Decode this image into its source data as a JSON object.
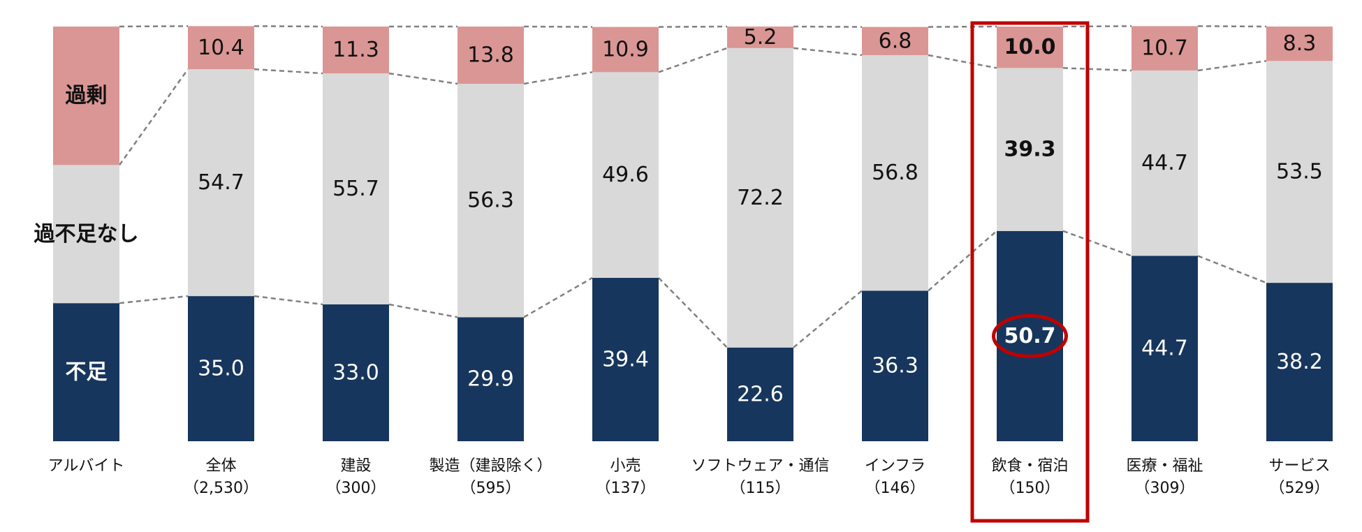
{
  "chart_data": {
    "type": "bar",
    "stacked": true,
    "orientation": "vertical",
    "normalized_percent": true,
    "categories": [
      {
        "name": "アルバイト",
        "n": ""
      },
      {
        "name": "全体",
        "n": "（2,530）"
      },
      {
        "name": "建設",
        "n": "（300）"
      },
      {
        "name": "製造（建設除く）",
        "n": "（595）"
      },
      {
        "name": "小売",
        "n": "（137）"
      },
      {
        "name": "ソフトウェア・通信",
        "n": "（115）"
      },
      {
        "name": "インフラ",
        "n": "（146）"
      },
      {
        "name": "飲食・宿泊",
        "n": "（150）"
      },
      {
        "name": "医療・福祉",
        "n": "（309）"
      },
      {
        "name": "サービス",
        "n": "（529）"
      }
    ],
    "series": [
      {
        "name": "不足",
        "color": "#17365d",
        "values": [
          null,
          35.0,
          33.0,
          29.9,
          39.4,
          22.6,
          36.3,
          50.7,
          44.7,
          38.2
        ],
        "labels": [
          "",
          "35.0",
          "33.0",
          "29.9",
          "39.4",
          "22.6",
          "36.3",
          "50.7",
          "44.7",
          "38.2"
        ]
      },
      {
        "name": "過不足なし",
        "color": "#d9d9d9",
        "values": [
          null,
          54.7,
          55.7,
          56.3,
          49.6,
          72.2,
          56.8,
          39.3,
          44.7,
          53.5
        ],
        "labels": [
          "",
          "54.7",
          "55.7",
          "56.3",
          "49.6",
          "72.2",
          "56.8",
          "39.3",
          "44.7",
          "53.5"
        ]
      },
      {
        "name": "過剰",
        "color": "#da9694",
        "values": [
          null,
          10.4,
          11.3,
          13.8,
          10.9,
          5.2,
          6.8,
          10.0,
          10.7,
          8.3
        ],
        "labels": [
          "",
          "10.4",
          "11.3",
          "13.8",
          "10.9",
          "5.2",
          "6.8",
          "10.0",
          "10.7",
          "8.3"
        ]
      }
    ],
    "legend_bar": {
      "category_index": 0,
      "values": [
        33.3,
        33.3,
        33.4
      ],
      "labels": [
        "不足",
        "過不足なし",
        "過剰"
      ]
    },
    "highlight": {
      "category_index": 7,
      "box_color": "#c00000",
      "circled_series": "不足"
    },
    "connector_lines": "dashed",
    "ylim": [
      0,
      100
    ],
    "grid": false,
    "title": "",
    "xlabel": "",
    "ylabel": ""
  }
}
